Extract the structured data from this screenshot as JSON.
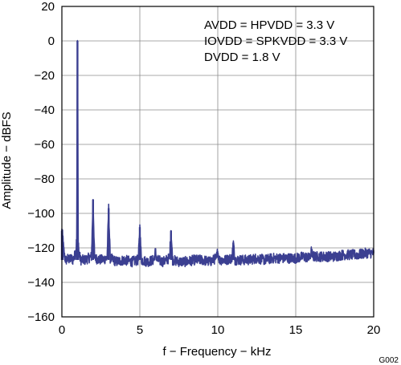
{
  "chart_data": {
    "type": "line",
    "xlabel": "f − Frequency − kHz",
    "ylabel": "Amplitude − dBFS",
    "xlim": [
      0,
      20
    ],
    "ylim": [
      -160,
      20
    ],
    "xticks": [
      0,
      5,
      10,
      15,
      20
    ],
    "yticks": [
      20,
      0,
      -20,
      -40,
      -60,
      -80,
      -100,
      -120,
      -140,
      -160
    ],
    "xtick_labels": [
      "0",
      "5",
      "10",
      "15",
      "20"
    ],
    "ytick_labels": [
      "20",
      "0",
      "−20",
      "−40",
      "−60",
      "−80",
      "−100",
      "−120",
      "−140",
      "−160"
    ],
    "grid": true,
    "line_color": "#3b3f91",
    "annotations": [
      "AVDD = HPVDD = 3.3 V",
      "IOVDD = SPKVDD = 3.3 V",
      "DVDD = 1.8 V"
    ],
    "figure_id": "G002",
    "series": [
      {
        "x": [
          0.0,
          0.05,
          0.1,
          0.15,
          0.2,
          0.25,
          0.3,
          0.4,
          0.5,
          0.6,
          0.7,
          0.8,
          0.9,
          0.95,
          1.0,
          1.05,
          1.1,
          1.2,
          1.5,
          1.9,
          2.0,
          2.1,
          2.5,
          2.9,
          3.0,
          3.1,
          3.5,
          4.0,
          4.5,
          4.9,
          5.0,
          5.1,
          5.5,
          5.9,
          6.0,
          6.1,
          6.5,
          6.9,
          7.0,
          7.1,
          7.5,
          8.0,
          8.5,
          9.0,
          9.5,
          9.9,
          10.0,
          10.1,
          10.5,
          10.9,
          11.0,
          11.1,
          11.5,
          12.0,
          12.5,
          13.0,
          13.5,
          14.0,
          14.5,
          15.0,
          15.5,
          15.9,
          16.0,
          16.1,
          16.5,
          17.0,
          17.5,
          18.0,
          18.5,
          19.0,
          19.5,
          20.0
        ],
        "y": [
          -110,
          -113,
          -119,
          -124,
          -126,
          -127,
          -127,
          -126,
          -127,
          -126,
          -127,
          -125,
          -122,
          -115,
          0,
          -117,
          -123,
          -127,
          -127,
          -125,
          -92,
          -126,
          -127,
          -126,
          -97,
          -126,
          -128,
          -127,
          -128,
          -127,
          -108,
          -127,
          -128,
          -127,
          -122,
          -127,
          -128,
          -126,
          -110,
          -127,
          -128,
          -128,
          -127,
          -127,
          -128,
          -126,
          -122,
          -127,
          -127,
          -126,
          -117,
          -127,
          -127,
          -127,
          -126,
          -127,
          -126,
          -126,
          -126,
          -126,
          -125,
          -126,
          -122,
          -125,
          -125,
          -125,
          -125,
          -124,
          -124,
          -124,
          -123,
          -123
        ]
      }
    ]
  }
}
